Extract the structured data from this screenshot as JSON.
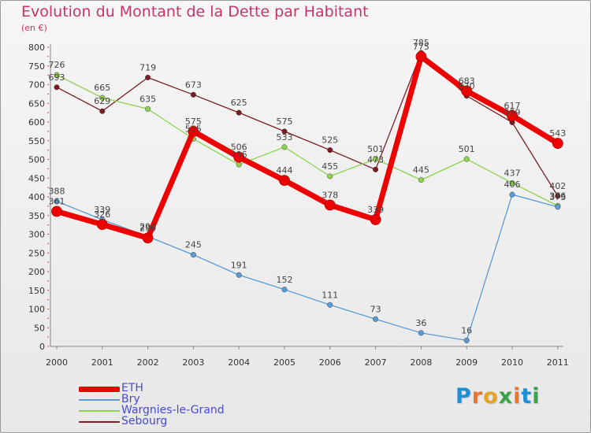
{
  "chart_data": {
    "type": "line",
    "title": "Evolution du Montant de la Dette par Habitant",
    "subtitle": "(en €)",
    "x": [
      "2000",
      "2001",
      "2002",
      "2003",
      "2004",
      "2005",
      "2006",
      "2007",
      "2008",
      "2009",
      "2010",
      "2011"
    ],
    "ylim": [
      0,
      800
    ],
    "yticks": [
      0,
      50,
      100,
      150,
      200,
      250,
      300,
      350,
      400,
      450,
      500,
      550,
      600,
      650,
      700,
      750,
      800
    ],
    "grid": false,
    "legend_position": "bottom-left",
    "series": [
      {
        "name": "ETH",
        "color": "#ee0000",
        "values": [
          361,
          326,
          290,
          575,
          506,
          444,
          378,
          339,
          775,
          683,
          617,
          543
        ]
      },
      {
        "name": "Bry",
        "color": "#5b9bd5",
        "values": [
          388,
          339,
          294,
          245,
          191,
          152,
          111,
          73,
          36,
          16,
          406,
          373
        ]
      },
      {
        "name": "Wargnies-le-Grand",
        "color": "#8fd14f",
        "values": [
          726,
          665,
          635,
          555,
          486,
          533,
          455,
          501,
          445,
          501,
          437,
          376
        ]
      },
      {
        "name": "Sebourg",
        "color": "#7b1c23",
        "values": [
          693,
          629,
          719,
          673,
          625,
          575,
          525,
          473,
          785,
          670,
          599,
          402
        ]
      }
    ]
  },
  "logo": {
    "letters": [
      "P",
      "r",
      "o",
      "x",
      "i",
      "t",
      "i"
    ],
    "colors": [
      "#1e8fd6",
      "#e8762d",
      "#e5a423",
      "#3aa548",
      "#e8762d",
      "#1e8fd6",
      "#3aa548"
    ]
  }
}
